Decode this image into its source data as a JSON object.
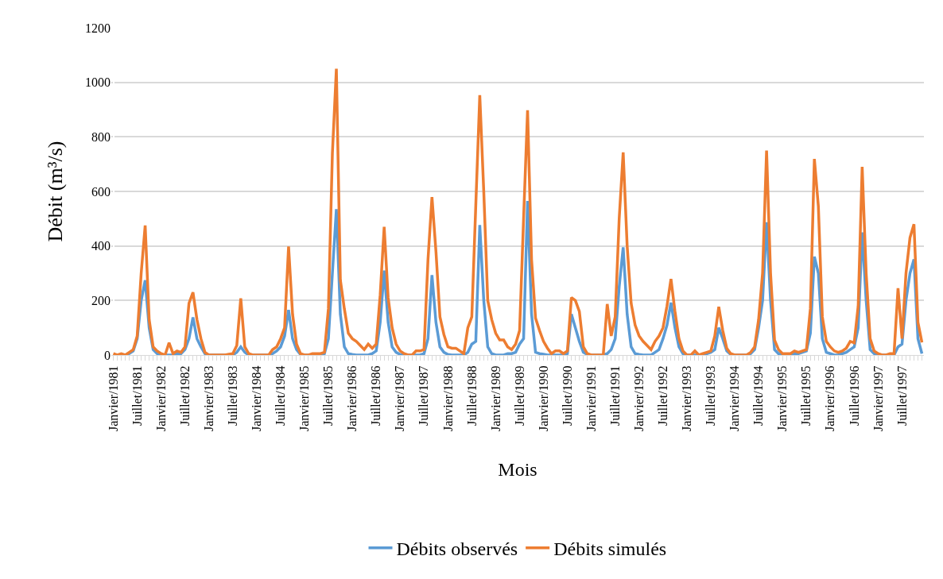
{
  "chart_data": {
    "type": "line",
    "xlabel": "Mois",
    "ylabel": "Débit (m³/s)",
    "categories": [
      "Janvier/1981",
      null,
      null,
      null,
      null,
      null,
      "Juillet/1981",
      null,
      null,
      null,
      null,
      null,
      "Janvier/1982",
      null,
      null,
      null,
      null,
      null,
      "Juillet/1982",
      null,
      null,
      null,
      null,
      null,
      "Janvier/1983",
      null,
      null,
      null,
      null,
      null,
      "Juillet/1983",
      null,
      null,
      null,
      null,
      null,
      "Janvier/1984",
      null,
      null,
      null,
      null,
      null,
      "Juillet/1984",
      null,
      null,
      null,
      null,
      null,
      "Janvier/1985",
      null,
      null,
      null,
      null,
      null,
      "Juillet/1985",
      null,
      null,
      null,
      null,
      null,
      "Janvier/1986",
      null,
      null,
      null,
      null,
      null,
      "Juillet/1986",
      null,
      null,
      null,
      null,
      null,
      "Janvier/1987",
      null,
      null,
      null,
      null,
      null,
      "Juillet/1987",
      null,
      null,
      null,
      null,
      null,
      "Janvier/1988",
      null,
      null,
      null,
      null,
      null,
      "Juillet/1988",
      null,
      null,
      null,
      null,
      null,
      "Janvier/1989",
      null,
      null,
      null,
      null,
      null,
      "Juillet/1989",
      null,
      null,
      null,
      null,
      null,
      "Janvier/1990",
      null,
      null,
      null,
      null,
      null,
      "Juillet/1990",
      null,
      null,
      null,
      null,
      null,
      "Janvier/1991",
      null,
      null,
      null,
      null,
      null,
      "Juillet/1991",
      null,
      null,
      null,
      null,
      null,
      "Janvier/1992",
      null,
      null,
      null,
      null,
      null,
      "Juillet/1992",
      null,
      null,
      null,
      null,
      null,
      "Janvier/1993",
      null,
      null,
      null,
      null,
      null,
      "Juillet/1993",
      null,
      null,
      null,
      null,
      null,
      "Janvier/1994",
      null,
      null,
      null,
      null,
      null,
      "Juillet/1994",
      null,
      null,
      null,
      null,
      null,
      "Janvier/1995",
      null,
      null,
      null,
      null,
      null,
      "Juillet/1995",
      null,
      null,
      null,
      null,
      null,
      "Janvier/1996",
      null,
      null,
      null,
      null,
      null,
      "Juillet/1996",
      null,
      null,
      null,
      null,
      null,
      "Janvier/1997",
      null,
      null,
      null,
      null,
      null,
      "Juillet/1997",
      null,
      null,
      null,
      null,
      null
    ],
    "series": [
      {
        "name": "Débits observés",
        "color": "#5b9bd5",
        "values": [
          null,
          null,
          0,
          0,
          5,
          15,
          60,
          200,
          274,
          100,
          20,
          5,
          0,
          0,
          0,
          0,
          5,
          5,
          20,
          60,
          138,
          60,
          30,
          5,
          0,
          0,
          0,
          0,
          0,
          0,
          0,
          10,
          30,
          10,
          0,
          0,
          0,
          0,
          0,
          0,
          5,
          15,
          30,
          70,
          165,
          60,
          20,
          2,
          0,
          0,
          0,
          0,
          0,
          5,
          60,
          300,
          535,
          150,
          30,
          5,
          2,
          0,
          0,
          0,
          0,
          5,
          15,
          120,
          310,
          120,
          30,
          10,
          2,
          0,
          0,
          0,
          0,
          0,
          5,
          60,
          293,
          120,
          30,
          10,
          2,
          0,
          0,
          0,
          0,
          10,
          40,
          50,
          477,
          200,
          30,
          5,
          0,
          0,
          0,
          5,
          5,
          10,
          40,
          60,
          565,
          150,
          10,
          5,
          3,
          0,
          0,
          0,
          0,
          0,
          5,
          150,
          100,
          50,
          10,
          2,
          0,
          0,
          0,
          0,
          5,
          20,
          60,
          250,
          395,
          150,
          30,
          5,
          2,
          0,
          0,
          0,
          10,
          20,
          60,
          110,
          192,
          100,
          30,
          5,
          0,
          0,
          0,
          0,
          0,
          5,
          10,
          20,
          100,
          60,
          15,
          2,
          0,
          0,
          0,
          0,
          5,
          20,
          100,
          200,
          487,
          200,
          20,
          5,
          2,
          0,
          0,
          5,
          5,
          10,
          15,
          80,
          361,
          300,
          60,
          10,
          5,
          0,
          0,
          5,
          10,
          20,
          30,
          100,
          450,
          200,
          20,
          5,
          0,
          0,
          0,
          0,
          0,
          30,
          40,
          200,
          300,
          351,
          60,
          5
        ]
      },
      {
        "name": "Débits simulés",
        "color": "#ed7d31",
        "values": [
          5,
          0,
          5,
          0,
          10,
          20,
          70,
          300,
          475,
          130,
          30,
          15,
          5,
          0,
          45,
          5,
          15,
          10,
          30,
          190,
          230,
          130,
          60,
          10,
          0,
          0,
          0,
          0,
          0,
          3,
          5,
          35,
          208,
          30,
          5,
          0,
          0,
          0,
          0,
          0,
          20,
          30,
          60,
          100,
          398,
          150,
          40,
          5,
          0,
          0,
          5,
          5,
          5,
          10,
          170,
          740,
          1050,
          275,
          170,
          80,
          60,
          50,
          35,
          20,
          40,
          25,
          40,
          220,
          470,
          210,
          100,
          40,
          15,
          5,
          0,
          0,
          15,
          15,
          20,
          350,
          579,
          380,
          140,
          75,
          30,
          25,
          25,
          15,
          5,
          100,
          140,
          550,
          953,
          600,
          200,
          130,
          80,
          55,
          55,
          30,
          20,
          40,
          90,
          500,
          898,
          350,
          135,
          90,
          50,
          25,
          5,
          15,
          15,
          5,
          15,
          211,
          200,
          160,
          30,
          5,
          0,
          0,
          0,
          0,
          187,
          70,
          140,
          500,
          743,
          400,
          190,
          110,
          70,
          50,
          35,
          20,
          50,
          70,
          100,
          180,
          279,
          160,
          60,
          15,
          0,
          0,
          15,
          0,
          5,
          10,
          15,
          70,
          177,
          90,
          25,
          5,
          0,
          0,
          0,
          0,
          10,
          30,
          130,
          300,
          750,
          300,
          55,
          20,
          5,
          5,
          5,
          15,
          10,
          15,
          20,
          170,
          719,
          545,
          140,
          50,
          30,
          15,
          10,
          15,
          25,
          50,
          45,
          180,
          690,
          300,
          60,
          15,
          5,
          0,
          0,
          5,
          5,
          245,
          60,
          300,
          430,
          480,
          120,
          46
        ]
      }
    ],
    "ylim": [
      0,
      1200
    ],
    "yticks": [
      0,
      200,
      400,
      600,
      800,
      1000,
      1200
    ],
    "grid": "y",
    "legend": "bottom",
    "marker": "none",
    "line_style": "solid"
  }
}
